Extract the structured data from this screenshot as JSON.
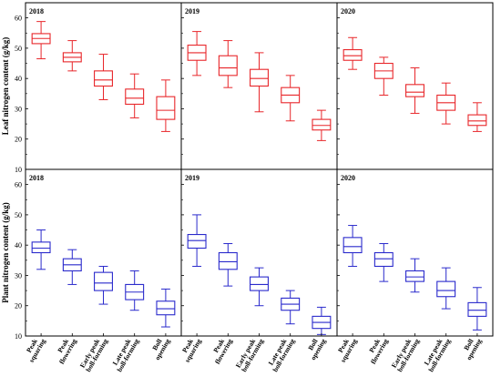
{
  "chart_data": {
    "type": "boxplot",
    "rows": [
      {
        "ylabel": "Leaf nitrogen content (g/kg)",
        "color": "#e8262a",
        "ylim": [
          10,
          65
        ],
        "yticks": [
          10,
          20,
          30,
          40,
          50,
          60
        ],
        "panels": [
          {
            "title": "2018",
            "boxes": [
              {
                "min": 46.5,
                "q1": 51.5,
                "median": 53.2,
                "q3": 54.8,
                "max": 58.8
              },
              {
                "min": 42.5,
                "q1": 45.5,
                "median": 47.0,
                "q3": 48.5,
                "max": 52.5
              },
              {
                "min": 33.0,
                "q1": 37.5,
                "median": 39.5,
                "q3": 42.5,
                "max": 48.0
              },
              {
                "min": 27.0,
                "q1": 31.5,
                "median": 33.5,
                "q3": 36.5,
                "max": 41.5
              },
              {
                "min": 22.5,
                "q1": 26.5,
                "median": 29.5,
                "q3": 34.0,
                "max": 39.5
              }
            ]
          },
          {
            "title": "2019",
            "boxes": [
              {
                "min": 41.0,
                "q1": 46.0,
                "median": 48.5,
                "q3": 51.0,
                "max": 55.5
              },
              {
                "min": 37.0,
                "q1": 41.0,
                "median": 43.5,
                "q3": 47.5,
                "max": 52.5
              },
              {
                "min": 29.0,
                "q1": 37.5,
                "median": 40.0,
                "q3": 43.0,
                "max": 48.5
              },
              {
                "min": 26.0,
                "q1": 32.0,
                "median": 34.5,
                "q3": 37.0,
                "max": 41.0
              },
              {
                "min": 19.5,
                "q1": 23.0,
                "median": 24.5,
                "q3": 26.5,
                "max": 29.5
              }
            ]
          },
          {
            "title": "2020",
            "boxes": [
              {
                "min": 43.0,
                "q1": 46.0,
                "median": 47.5,
                "q3": 49.5,
                "max": 53.5
              },
              {
                "min": 34.5,
                "q1": 40.0,
                "median": 42.5,
                "q3": 45.0,
                "max": 47.0
              },
              {
                "min": 28.5,
                "q1": 34.0,
                "median": 35.5,
                "q3": 38.0,
                "max": 43.5
              },
              {
                "min": 25.0,
                "q1": 29.5,
                "median": 32.0,
                "q3": 34.5,
                "max": 38.5
              },
              {
                "min": 22.5,
                "q1": 24.5,
                "median": 26.0,
                "q3": 28.0,
                "max": 32.0
              }
            ]
          }
        ]
      },
      {
        "ylabel": "Plant nitrogen content (g/kg)",
        "color": "#2a2acc",
        "ylim": [
          10,
          65
        ],
        "yticks": [
          10,
          20,
          30,
          40,
          50,
          60
        ],
        "panels": [
          {
            "title": "2018",
            "boxes": [
              {
                "min": 32.0,
                "q1": 37.5,
                "median": 39.0,
                "q3": 41.0,
                "max": 45.0
              },
              {
                "min": 27.0,
                "q1": 31.5,
                "median": 33.5,
                "q3": 35.5,
                "max": 38.5
              },
              {
                "min": 20.5,
                "q1": 25.0,
                "median": 27.5,
                "q3": 31.0,
                "max": 33.0
              },
              {
                "min": 18.5,
                "q1": 22.0,
                "median": 24.5,
                "q3": 27.0,
                "max": 31.5
              },
              {
                "min": 13.0,
                "q1": 17.0,
                "median": 19.0,
                "q3": 21.5,
                "max": 25.5
              }
            ]
          },
          {
            "title": "2019",
            "boxes": [
              {
                "min": 33.0,
                "q1": 39.0,
                "median": 41.5,
                "q3": 43.5,
                "max": 50.0
              },
              {
                "min": 26.5,
                "q1": 32.0,
                "median": 34.5,
                "q3": 37.5,
                "max": 40.5
              },
              {
                "min": 20.0,
                "q1": 25.0,
                "median": 27.0,
                "q3": 29.5,
                "max": 32.5
              },
              {
                "min": 14.0,
                "q1": 18.5,
                "median": 20.5,
                "q3": 22.5,
                "max": 25.0
              },
              {
                "min": 10.5,
                "q1": 12.5,
                "median": 14.5,
                "q3": 16.5,
                "max": 19.5
              }
            ]
          },
          {
            "title": "2020",
            "boxes": [
              {
                "min": 33.0,
                "q1": 37.5,
                "median": 39.5,
                "q3": 42.5,
                "max": 46.5
              },
              {
                "min": 28.0,
                "q1": 33.0,
                "median": 35.5,
                "q3": 37.5,
                "max": 40.5
              },
              {
                "min": 24.5,
                "q1": 28.0,
                "median": 29.5,
                "q3": 31.5,
                "max": 35.5
              },
              {
                "min": 19.0,
                "q1": 23.0,
                "median": 25.0,
                "q3": 28.0,
                "max": 32.5
              },
              {
                "min": 12.0,
                "q1": 16.5,
                "median": 18.5,
                "q3": 21.0,
                "max": 26.0
              }
            ]
          }
        ]
      }
    ],
    "categories": [
      [
        "Peak",
        "squaring"
      ],
      [
        "Peak",
        "flowering"
      ],
      [
        "Early peak",
        "boll-forming"
      ],
      [
        "Late peak",
        "boll-forming"
      ],
      [
        "Boll",
        "opening"
      ]
    ]
  }
}
